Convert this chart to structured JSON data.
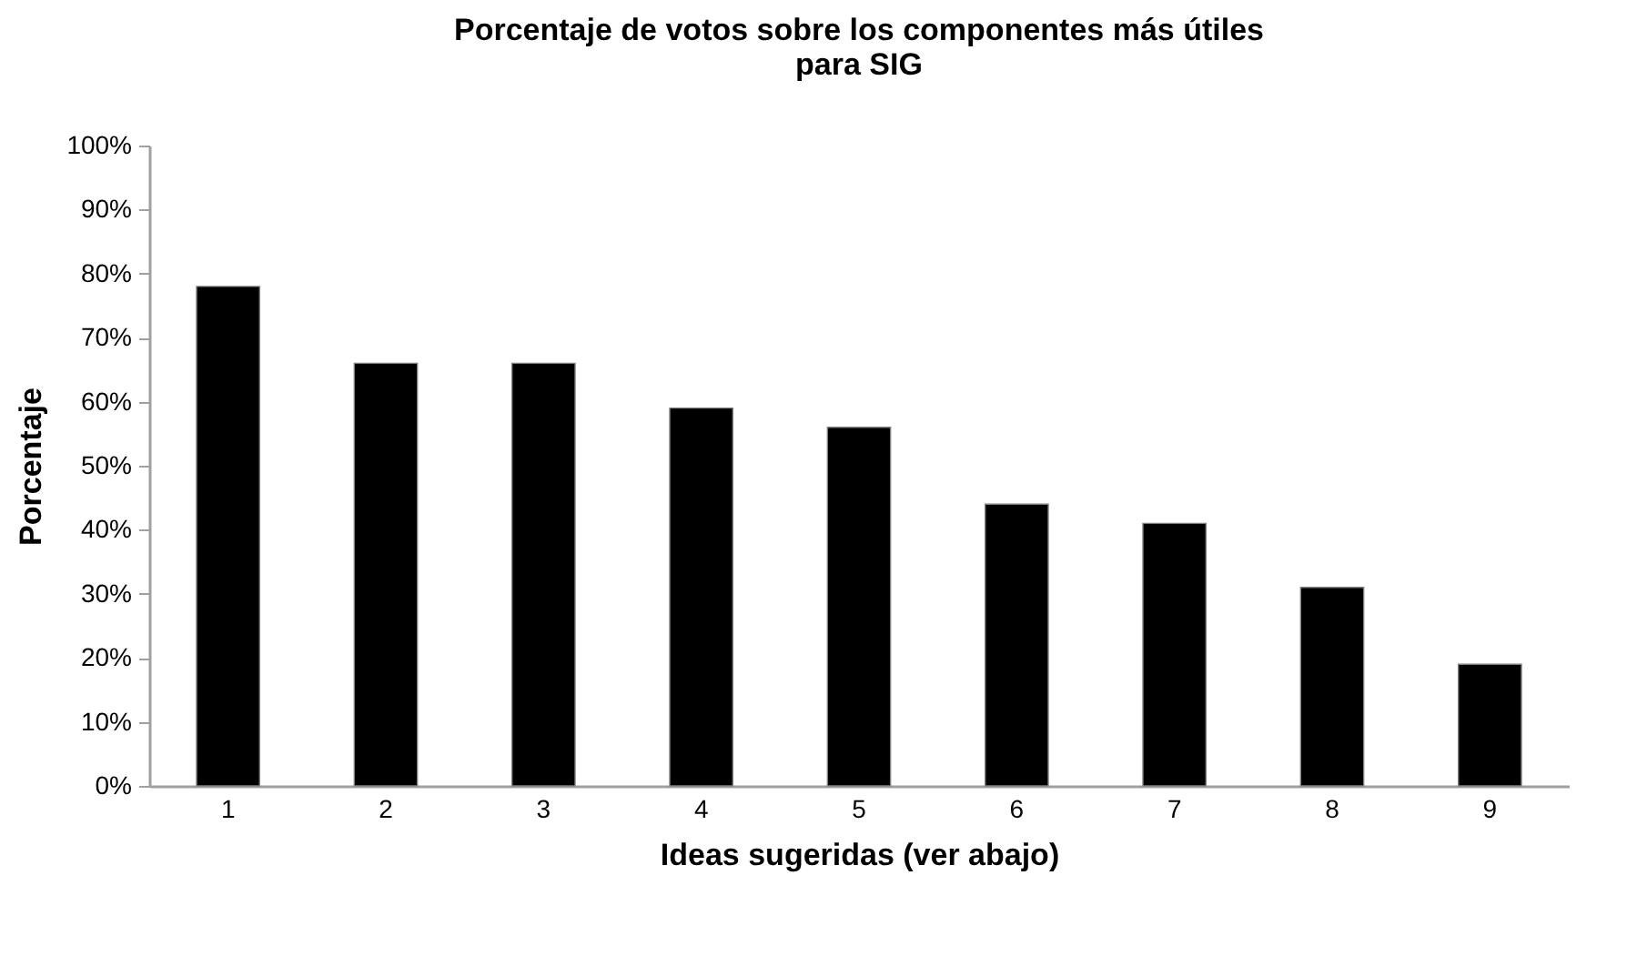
{
  "chart_data": {
    "type": "bar",
    "title": [
      "Porcentaje de votos sobre los componentes más útiles",
      "para SIG"
    ],
    "xlabel": "Ideas sugeridas (ver abajo)",
    "ylabel": "Porcentaje",
    "categories": [
      "1",
      "2",
      "3",
      "4",
      "5",
      "6",
      "7",
      "8",
      "9"
    ],
    "values": [
      78,
      66,
      66,
      59,
      56,
      44,
      41,
      31,
      19
    ],
    "color": "#000000",
    "ylim": [
      0,
      100
    ],
    "yticks": [
      {
        "value": 0,
        "label": "0%"
      },
      {
        "value": 10,
        "label": "10%"
      },
      {
        "value": 20,
        "label": "20%"
      },
      {
        "value": 30,
        "label": "30%"
      },
      {
        "value": 40,
        "label": "40%"
      },
      {
        "value": 50,
        "label": "50%"
      },
      {
        "value": 60,
        "label": "60%"
      },
      {
        "value": 70,
        "label": "70%"
      },
      {
        "value": 80,
        "label": "80%"
      },
      {
        "value": 90,
        "label": "90%"
      },
      {
        "value": 100,
        "label": "100%"
      }
    ],
    "grid": false
  }
}
